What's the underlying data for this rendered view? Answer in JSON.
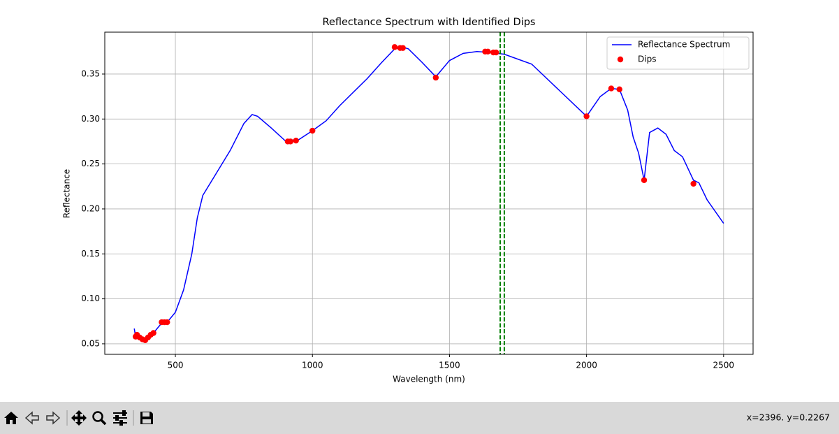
{
  "chart_data": {
    "type": "line",
    "title": "Reflectance Spectrum with Identified Dips",
    "xlabel": "Wavelength (nm)",
    "ylabel": "Reflectance",
    "xlim": [
      242.5,
      2607.5
    ],
    "ylim": [
      0.0383,
      0.3966
    ],
    "xticks": [
      500,
      1000,
      1500,
      2000,
      2500
    ],
    "yticks": [
      0.05,
      {
        "value": 0.1,
        "label": "0.10"
      },
      0.15,
      {
        "value": 0.2,
        "label": "0.20"
      },
      0.25,
      {
        "value": 0.3,
        "label": "0.30"
      },
      0.35
    ],
    "grid": true,
    "legend": "upper right",
    "series": [
      {
        "name": "Reflectance Spectrum",
        "type": "line",
        "color": "#0000ff",
        "x": [
          350,
          355,
          360,
          380,
          400,
          420,
          450,
          470,
          500,
          530,
          560,
          580,
          600,
          650,
          700,
          750,
          780,
          800,
          850,
          900,
          950,
          1000,
          1050,
          1100,
          1200,
          1250,
          1300,
          1330,
          1350,
          1400,
          1450,
          1500,
          1550,
          1600,
          1650,
          1700,
          1800,
          1900,
          2000,
          2050,
          2090,
          2120,
          2150,
          2170,
          2190,
          2210,
          2230,
          2260,
          2290,
          2320,
          2350,
          2370,
          2390,
          2410,
          2440,
          2470,
          2500
        ],
        "y": [
          0.067,
          0.058,
          0.06,
          0.056,
          0.057,
          0.062,
          0.073,
          0.074,
          0.085,
          0.11,
          0.15,
          0.19,
          0.215,
          0.24,
          0.265,
          0.295,
          0.305,
          0.303,
          0.29,
          0.276,
          0.277,
          0.287,
          0.298,
          0.315,
          0.345,
          0.362,
          0.378,
          0.38,
          0.378,
          0.363,
          0.347,
          0.365,
          0.373,
          0.375,
          0.374,
          0.372,
          0.361,
          0.332,
          0.303,
          0.325,
          0.334,
          0.333,
          0.31,
          0.28,
          0.262,
          0.232,
          0.285,
          0.29,
          0.283,
          0.265,
          0.258,
          0.245,
          0.232,
          0.229,
          0.21,
          0.197,
          0.184
        ]
      },
      {
        "name": "Dips",
        "type": "scatter",
        "color": "#ff0000",
        "x": [
          355,
          360,
          370,
          380,
          390,
          400,
          410,
          420,
          450,
          460,
          470,
          910,
          920,
          940,
          1000,
          1300,
          1320,
          1330,
          1450,
          1630,
          1640,
          1660,
          1670,
          2000,
          2090,
          2120,
          2210,
          2390
        ],
        "y": [
          0.058,
          0.06,
          0.057,
          0.055,
          0.054,
          0.057,
          0.06,
          0.062,
          0.074,
          0.074,
          0.074,
          0.275,
          0.275,
          0.276,
          0.287,
          0.38,
          0.379,
          0.379,
          0.346,
          0.375,
          0.375,
          0.374,
          0.374,
          0.303,
          0.334,
          0.333,
          0.232,
          0.228
        ]
      }
    ],
    "vlines": {
      "color": "#008000",
      "x": [
        1685,
        1700
      ]
    }
  },
  "toolbar": {
    "status": "x=2396. y=0.2267"
  }
}
